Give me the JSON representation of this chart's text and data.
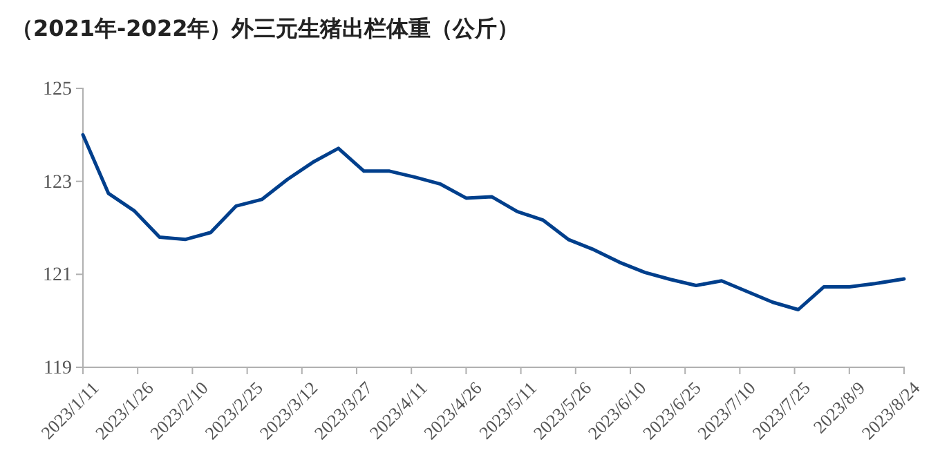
{
  "chart_data": {
    "type": "line",
    "title": "（2021年-2022年）外三元生猪出栏体重（公斤）",
    "x": [
      "2023-01-11",
      "2023-01-18",
      "2023-01-25",
      "2023-02-01",
      "2023-02-08",
      "2023-02-15",
      "2023-02-22",
      "2023-03-01",
      "2023-03-08",
      "2023-03-15",
      "2023-03-22",
      "2023-03-29",
      "2023-04-05",
      "2023-04-12",
      "2023-04-19",
      "2023-04-26",
      "2023-05-03",
      "2023-05-10",
      "2023-05-17",
      "2023-05-24",
      "2023-05-31",
      "2023-06-07",
      "2023-06-14",
      "2023-06-21",
      "2023-06-28",
      "2023-07-05",
      "2023-07-12",
      "2023-07-19",
      "2023-07-26",
      "2023-08-02",
      "2023-08-09",
      "2023-08-16",
      "2023-08-24"
    ],
    "series": [
      {
        "color": "#003f8c",
        "values": [
          124.0,
          122.74,
          122.37,
          121.8,
          121.75,
          121.9,
          122.47,
          122.61,
          123.04,
          123.41,
          123.71,
          123.22,
          123.22,
          123.09,
          122.94,
          122.64,
          122.67,
          122.35,
          122.17,
          121.75,
          121.53,
          121.26,
          121.04,
          120.89,
          120.76,
          120.86,
          120.63,
          120.4,
          120.24,
          120.73,
          120.73,
          120.8,
          120.9
        ]
      }
    ],
    "xlim": [
      "2023-01-11",
      "2023-08-24"
    ],
    "xticks": [
      {
        "value": "2023-01-11",
        "label": "2023/1/11"
      },
      {
        "value": "2023-01-26",
        "label": "2023/1/26"
      },
      {
        "value": "2023-02-10",
        "label": "2023/2/10"
      },
      {
        "value": "2023-02-25",
        "label": "2023/2/25"
      },
      {
        "value": "2023-03-12",
        "label": "2023/3/12"
      },
      {
        "value": "2023-03-27",
        "label": "2023/3/27"
      },
      {
        "value": "2023-04-11",
        "label": "2023/4/11"
      },
      {
        "value": "2023-04-26",
        "label": "2023/4/26"
      },
      {
        "value": "2023-05-11",
        "label": "2023/5/11"
      },
      {
        "value": "2023-05-26",
        "label": "2023/5/26"
      },
      {
        "value": "2023-06-10",
        "label": "2023/6/10"
      },
      {
        "value": "2023-06-25",
        "label": "2023/6/25"
      },
      {
        "value": "2023-07-10",
        "label": "2023/7/10"
      },
      {
        "value": "2023-07-25",
        "label": "2023/7/25"
      },
      {
        "value": "2023-08-09",
        "label": "2023/8/9"
      },
      {
        "value": "2023-08-24",
        "label": "2023/8/24"
      }
    ],
    "ylim": [
      119,
      125
    ],
    "yticks": [
      119,
      121,
      123,
      125
    ],
    "grid": false,
    "marker": "none",
    "line_style": "solid"
  }
}
